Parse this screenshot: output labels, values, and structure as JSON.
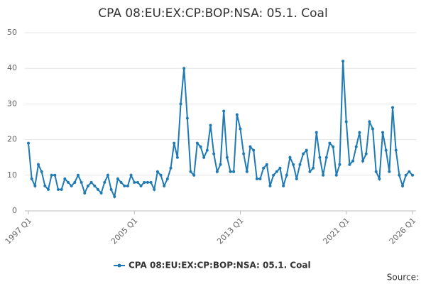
{
  "chart_data": {
    "type": "line",
    "title": "CPA 08:EU:EX:CP:BOP:NSA: 05.1. Coal",
    "source": "Source:",
    "categories": [
      "1997 Q1",
      null,
      null,
      null,
      null,
      null,
      null,
      null,
      null,
      null,
      null,
      null,
      null,
      null,
      null,
      null,
      null,
      null,
      null,
      null,
      null,
      null,
      null,
      null,
      null,
      null,
      null,
      null,
      null,
      null,
      null,
      null,
      "2005 Q1",
      null,
      null,
      null,
      null,
      null,
      null,
      null,
      null,
      null,
      null,
      null,
      null,
      null,
      null,
      null,
      null,
      null,
      null,
      null,
      null,
      null,
      null,
      null,
      null,
      null,
      null,
      null,
      null,
      null,
      null,
      null,
      "2013 Q1",
      null,
      null,
      null,
      null,
      null,
      null,
      null,
      null,
      null,
      null,
      null,
      null,
      null,
      null,
      null,
      null,
      null,
      null,
      null,
      null,
      null,
      null,
      null,
      null,
      null,
      null,
      null,
      null,
      null,
      null,
      null,
      "2021 Q1",
      null,
      null,
      null,
      null,
      null,
      null,
      null,
      null,
      null,
      null,
      null,
      null,
      null,
      null,
      null,
      null,
      null,
      null,
      null,
      "2026 Q1"
    ],
    "series": [
      {
        "name": "CPA 08:EU:EX:CP:BOP:NSA: 05.1. Coal",
        "color": "#1f7ab4",
        "values": [
          19,
          9,
          7,
          13,
          11,
          7,
          6,
          10,
          10,
          6,
          6,
          9,
          8,
          7,
          8,
          10,
          8,
          5,
          7,
          8,
          7,
          6,
          5,
          8,
          10,
          6,
          4,
          9,
          8,
          7,
          7,
          10,
          8,
          8,
          7,
          8,
          8,
          8,
          6,
          11,
          10,
          7,
          9,
          12,
          19,
          15,
          30,
          40,
          26,
          11,
          10,
          19,
          18,
          15,
          17,
          24,
          16,
          11,
          13,
          28,
          15,
          11,
          11,
          27,
          23,
          16,
          11,
          18,
          17,
          9,
          9,
          12,
          13,
          7,
          10,
          11,
          12,
          7,
          10,
          15,
          13,
          9,
          13,
          16,
          17,
          11,
          12,
          22,
          15,
          10,
          15,
          19,
          18,
          10,
          13,
          42,
          25,
          13,
          14,
          18,
          22,
          14,
          16,
          25,
          23,
          11,
          9,
          22,
          17,
          11,
          29,
          17,
          10,
          7,
          10,
          11,
          10
        ]
      }
    ],
    "ylim": [
      0,
      50
    ],
    "yticks": [
      0,
      10,
      20,
      30,
      40,
      50
    ],
    "grid": true
  }
}
